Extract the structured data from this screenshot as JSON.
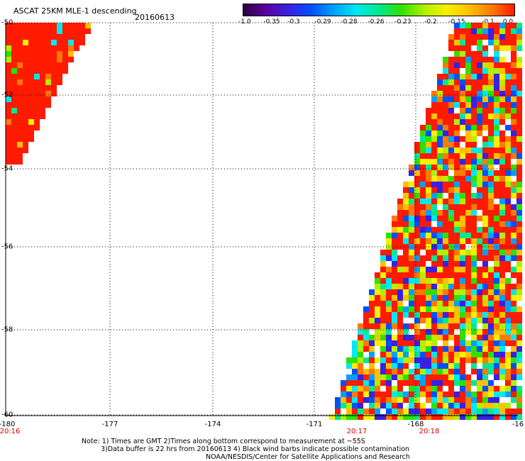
{
  "header": {
    "title": "ASCAT 25KM MLE-1 descending",
    "date": "20160613"
  },
  "colorbar": {
    "colors": [
      "#2a0040",
      "#5a00a0",
      "#3a20e0",
      "#0050ff",
      "#00a0ff",
      "#00e8f0",
      "#00e890",
      "#30e000",
      "#b0f000",
      "#f8f000",
      "#ffc000",
      "#ff7a00",
      "#ff1a00"
    ],
    "labels": [
      "-1.0",
      "-0.35",
      "-0.3",
      "-0.29",
      "-0.28",
      "-0.26",
      "-0.23",
      "-0.2",
      "-0.15",
      "-0.1",
      "0.0"
    ]
  },
  "map": {
    "lat_labels": [
      "-50",
      "-52",
      "-54",
      "-56",
      "-58",
      "-60"
    ],
    "lon_labels": [
      "-180",
      "-177",
      "-174",
      "-171",
      "-168",
      "-16"
    ],
    "time_labels": [
      "20:16",
      "20:17",
      "20:18"
    ],
    "swath_palette": [
      "#ff1a00",
      "#ff1a00",
      "#ff1a00",
      "#ff7a00",
      "#ffc000",
      "#f8f000",
      "#b0f000",
      "#30e000",
      "#00e890",
      "#00e8f0",
      "#00a0ff",
      "#0050ff",
      "#3a20e0",
      "#ffffff"
    ]
  },
  "notes": {
    "line1": "Note: 1) Times are GMT 2)Times along bottom correspond to measurement at ~55S",
    "line2": "3)Data buffer is 22 hrs from 20160613 4) Black wind barbs indicate possible contamination",
    "line3": "NOAA/NESDIS/Center for Satellite Applications and Research"
  }
}
